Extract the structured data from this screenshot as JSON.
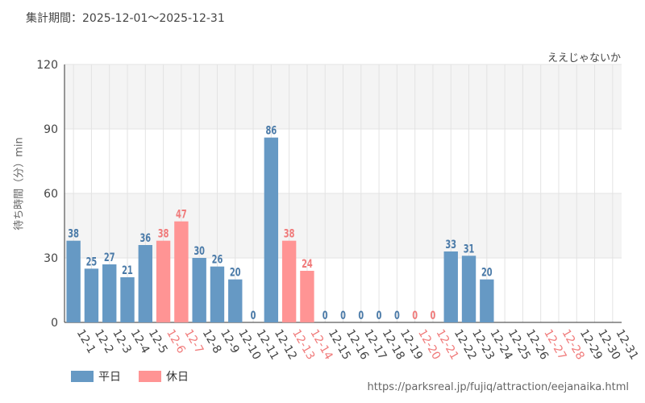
{
  "header": {
    "period": "集計期間：2025-12-01～2025-12-31",
    "attraction": "ええじゃないか"
  },
  "footer": {
    "url": "https://parksreal.jp/fujiq/attraction/eejanaika.html"
  },
  "colors": {
    "weekday": "#6699c4",
    "holiday": "#ff9494",
    "weekday_label": "#4a7aa8",
    "holiday_label": "#f07a7a",
    "axis_text": "#444444",
    "grid": "#e3e3e3",
    "band": "#f4f4f4"
  },
  "chart_data": {
    "type": "bar",
    "title": "",
    "xlabel": "",
    "ylabel": "待ち時間（分）min",
    "ylim": [
      0,
      120
    ],
    "yticks": [
      0,
      30,
      60,
      90,
      120
    ],
    "categories": [
      "12-1",
      "12-2",
      "12-3",
      "12-4",
      "12-5",
      "12-6",
      "12-7",
      "12-8",
      "12-9",
      "12-10",
      "12-11",
      "12-12",
      "12-13",
      "12-14",
      "12-15",
      "12-16",
      "12-17",
      "12-18",
      "12-19",
      "12-20",
      "12-21",
      "12-22",
      "12-23",
      "12-24",
      "12-25",
      "12-26",
      "12-27",
      "12-28",
      "12-29",
      "12-30",
      "12-31"
    ],
    "values": [
      38,
      25,
      27,
      21,
      36,
      38,
      47,
      30,
      26,
      20,
      0,
      86,
      38,
      24,
      0,
      0,
      0,
      0,
      0,
      0,
      0,
      33,
      31,
      20,
      null,
      null,
      null,
      null,
      null,
      null,
      null
    ],
    "day_type": [
      "weekday",
      "weekday",
      "weekday",
      "weekday",
      "weekday",
      "holiday",
      "holiday",
      "weekday",
      "weekday",
      "weekday",
      "weekday",
      "weekday",
      "holiday",
      "holiday",
      "weekday",
      "weekday",
      "weekday",
      "weekday",
      "weekday",
      "holiday",
      "holiday",
      "weekday",
      "weekday",
      "weekday",
      "weekday",
      "weekday",
      "holiday",
      "holiday",
      "weekday",
      "weekday",
      "weekday"
    ],
    "legend": [
      {
        "key": "weekday",
        "label": "平日"
      },
      {
        "key": "holiday",
        "label": "休日"
      }
    ],
    "legend_position": "bottom-left"
  }
}
